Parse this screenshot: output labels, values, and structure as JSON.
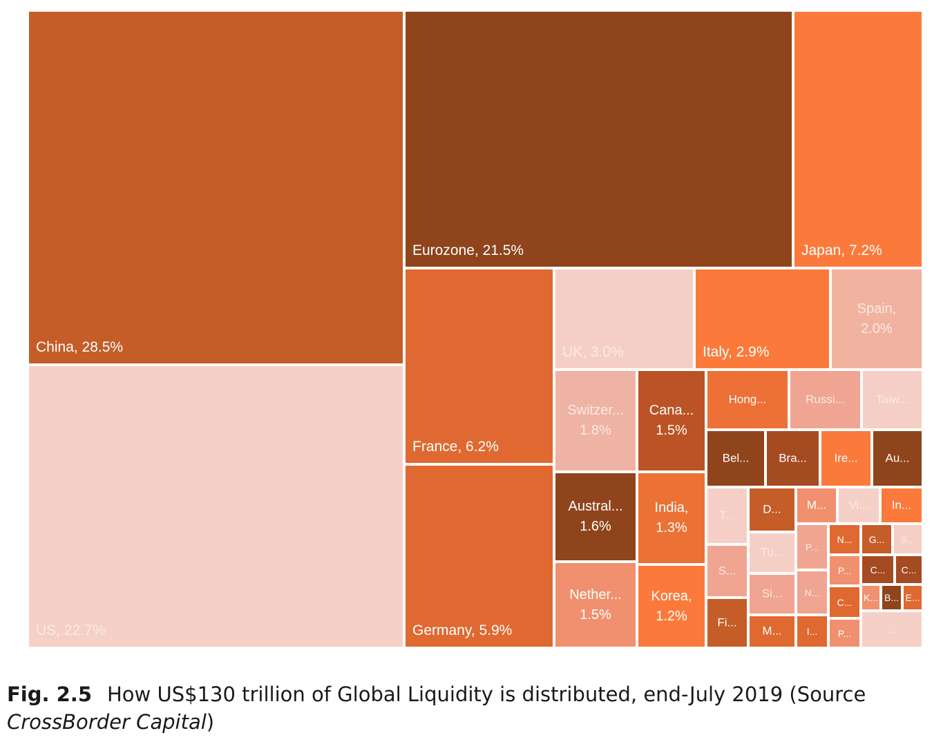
{
  "chart_data": {
    "type": "treemap",
    "title": "",
    "items": [
      {
        "label": "China, 28.5%",
        "value": 28.5,
        "color": "#c45d28",
        "text": "light"
      },
      {
        "label": "US, 22.7%",
        "value": 22.7,
        "color": "#f5d0c7",
        "text": "light"
      },
      {
        "label": "Eurozone, 21.5%",
        "value": 21.5,
        "color": "#8f441c",
        "text": "light"
      },
      {
        "label": "Japan, 7.2%",
        "value": 7.2,
        "color": "#fb7a3b",
        "text": "light"
      },
      {
        "label": "France, 6.2%",
        "value": 6.2,
        "color": "#df6930",
        "text": "light"
      },
      {
        "label": "Germany, 5.9%",
        "value": 5.9,
        "color": "#df6930",
        "text": "light"
      },
      {
        "label": "UK, 3.0%",
        "value": 3.0,
        "color": "#f5cfc6",
        "text": "light"
      },
      {
        "label": "Italy, 2.9%",
        "value": 2.9,
        "color": "#fb7a3b",
        "text": "light"
      },
      {
        "label": "Spain,\n2.0%",
        "value": 2.0,
        "color": "#f1b29f",
        "text": "light"
      },
      {
        "label": "Switzer...\n1.8%",
        "value": 1.8,
        "color": "#efb3a4",
        "text": "light"
      },
      {
        "label": "Austral...\n1.6%",
        "value": 1.6,
        "color": "#8f441c",
        "text": "light"
      },
      {
        "label": "Nether...\n1.5%",
        "value": 1.5,
        "color": "#f0906e",
        "text": "light"
      },
      {
        "label": "Cana...\n1.5%",
        "value": 1.5,
        "color": "#bb5326",
        "text": "light"
      },
      {
        "label": "India,\n1.3%",
        "value": 1.3,
        "color": "#eb7135",
        "text": "light"
      },
      {
        "label": "Korea,\n1.2%",
        "value": 1.2,
        "color": "#fb7a3b",
        "text": "light"
      },
      {
        "label": "Hong...",
        "color": "#ed7036",
        "text": "light"
      },
      {
        "label": "Russi...",
        "color": "#efa592",
        "text": "light"
      },
      {
        "label": "Taiw...",
        "color": "#f5cfc6",
        "text": "light"
      },
      {
        "label": "Bel...",
        "color": "#8f441c",
        "text": "light"
      },
      {
        "label": "Bra...",
        "color": "#a54b22",
        "text": "light"
      },
      {
        "label": "Ire...",
        "color": "#fb7a3b",
        "text": "light"
      },
      {
        "label": "Au...",
        "color": "#8f441c",
        "text": "light"
      },
      {
        "label": "T...",
        "color": "#f5cfc6",
        "text": "light"
      },
      {
        "label": "S...",
        "color": "#efa592",
        "text": "light"
      },
      {
        "label": "Fi...",
        "color": "#c45d28",
        "text": "light"
      },
      {
        "label": "D...",
        "color": "#c45d28",
        "text": "light"
      },
      {
        "label": "Tu...",
        "color": "#f5cfc6",
        "text": "light"
      },
      {
        "label": "Si...",
        "color": "#efa592",
        "text": "light"
      },
      {
        "label": "M...",
        "color": "#df6930",
        "text": "light"
      },
      {
        "label": "M...",
        "color": "#f0906e",
        "text": "light"
      },
      {
        "label": "Vi...",
        "color": "#f5d0c7",
        "text": "light"
      },
      {
        "label": "In...",
        "color": "#fb7a3b",
        "text": "light"
      },
      {
        "label": "P...",
        "color": "#efa592",
        "text": "light"
      },
      {
        "label": "N...",
        "color": "#df6930",
        "text": "light"
      },
      {
        "label": "G...",
        "color": "#c45d28",
        "text": "light"
      },
      {
        "label": "S...",
        "color": "#f5cfc6",
        "text": "light"
      },
      {
        "label": "N...",
        "color": "#efa592",
        "text": "light"
      },
      {
        "label": "P...",
        "color": "#f0906e",
        "text": "light"
      },
      {
        "label": "C...",
        "color": "#a54b22",
        "text": "light"
      },
      {
        "label": "C...",
        "color": "#df6930",
        "text": "light"
      },
      {
        "label": "C...",
        "color": "#a54b22",
        "text": "light"
      },
      {
        "label": "K...",
        "color": "#f0906e",
        "text": "light"
      },
      {
        "label": "B...",
        "color": "#8f441c",
        "text": "light"
      },
      {
        "label": "E...",
        "color": "#df6930",
        "text": "light"
      },
      {
        "label": "I...",
        "color": "#df6930",
        "text": "light"
      },
      {
        "label": "P...",
        "color": "#f0906e",
        "text": "light"
      },
      {
        "label": "...",
        "color": "#f5d0c7",
        "text": "light"
      }
    ]
  },
  "caption": {
    "fig": "Fig. 2.5",
    "text": "How US$130 trillion of Global Liquidity is distributed, end-July 2019 (Source",
    "source": "CrossBorder Capital",
    "close": ")"
  }
}
